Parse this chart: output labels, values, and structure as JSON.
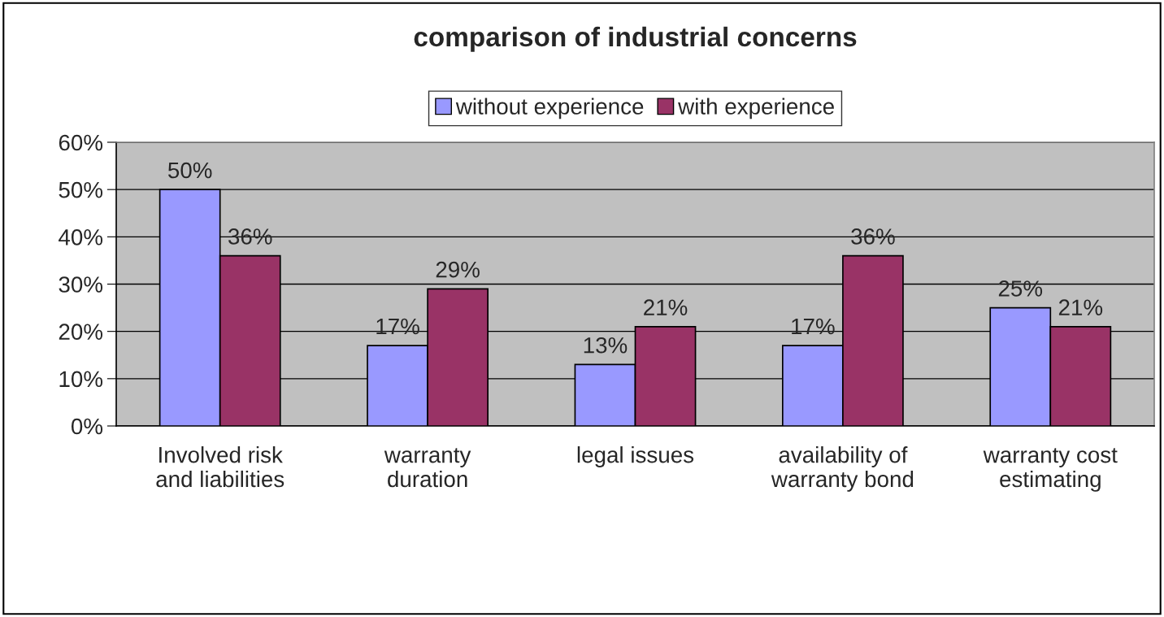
{
  "chart_data": {
    "type": "bar",
    "title": "comparison of industrial concerns",
    "categories": [
      "Involved risk\nand liabilities",
      "warranty\nduration",
      "legal issues",
      "availability of\nwarranty bond",
      "warranty cost\nestimating"
    ],
    "series": [
      {
        "name": "without experience",
        "color": "#9999ff",
        "values": [
          50,
          17,
          13,
          17,
          25
        ],
        "value_labels": [
          "50%",
          "17%",
          "13%",
          "17%",
          "25%"
        ]
      },
      {
        "name": "with experience",
        "color": "#993366",
        "values": [
          36,
          29,
          21,
          36,
          21
        ],
        "value_labels": [
          "36%",
          "29%",
          "21%",
          "36%",
          "21%"
        ]
      }
    ],
    "ylim": [
      0,
      60
    ],
    "yticks": [
      {
        "value": 0,
        "label": "0%"
      },
      {
        "value": 10,
        "label": "10%"
      },
      {
        "value": 20,
        "label": "20%"
      },
      {
        "value": 30,
        "label": "30%"
      },
      {
        "value": 40,
        "label": "40%"
      },
      {
        "value": 50,
        "label": "50%"
      },
      {
        "value": 60,
        "label": "60%"
      }
    ],
    "grid": "y",
    "legend": "top"
  }
}
